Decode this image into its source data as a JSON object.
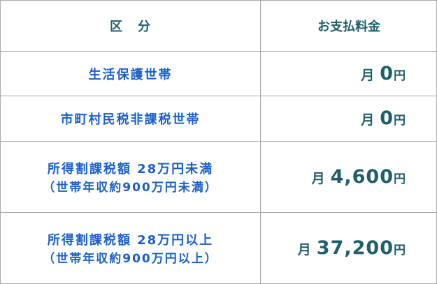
{
  "header": {
    "category": "区　分",
    "payment": "お支払料金"
  },
  "rows": [
    {
      "category": "生活保護世帯",
      "sub": "",
      "prefix": "月",
      "amount": "0",
      "unit": "円"
    },
    {
      "category": "市町村民税非課税世帯",
      "sub": "",
      "prefix": "月",
      "amount": "0",
      "unit": "円"
    },
    {
      "category": "所得割課税額 28万円未満",
      "sub": "（世帯年収約900万円未満）",
      "prefix": "月",
      "amount": "4,600",
      "unit": "円"
    },
    {
      "category": "所得割課税額 28万円以上",
      "sub": "（世帯年収約900万円以上）",
      "prefix": "月",
      "amount": "37,200",
      "unit": "円"
    }
  ],
  "colors": {
    "category_text": "#1a5fc8",
    "amount_text": "#1f5f6b",
    "border": "#a8a8a8"
  }
}
